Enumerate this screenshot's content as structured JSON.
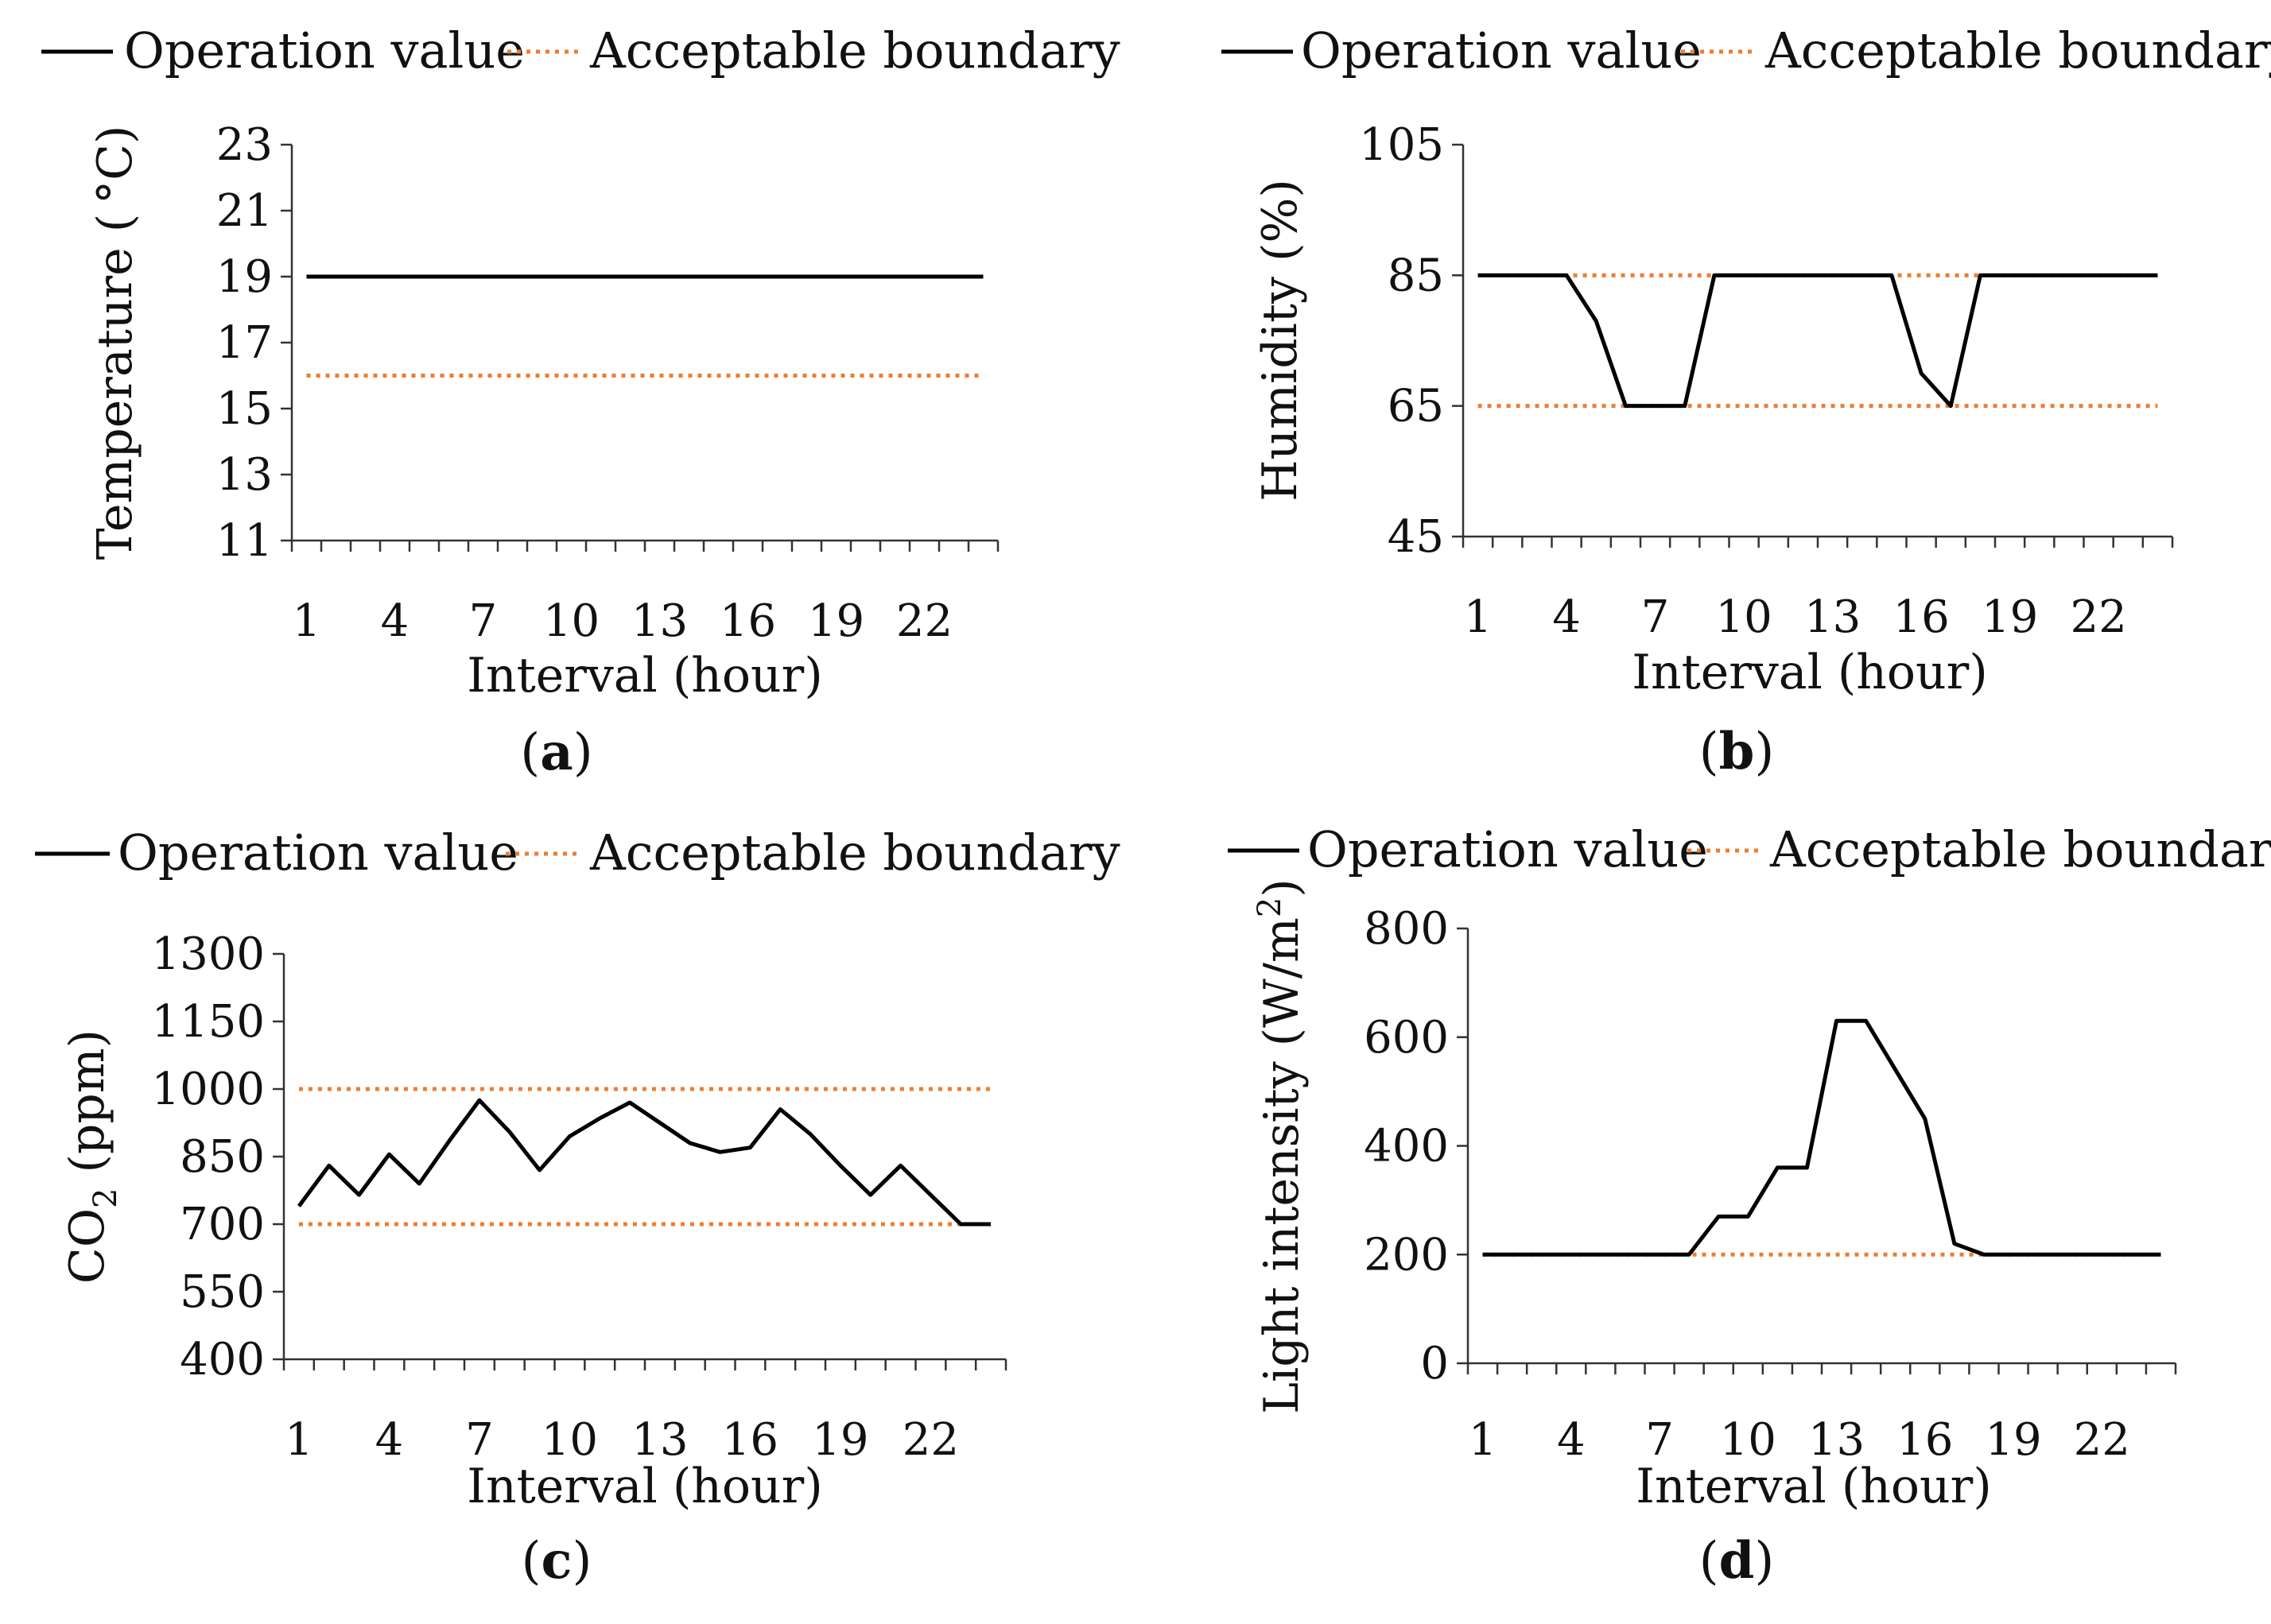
{
  "chart_data": [
    {
      "panel": "a",
      "caption": {
        "open": "(",
        "letter": "a",
        "close": ")"
      },
      "type": "line",
      "legend": {
        "operation": "Operation value",
        "boundary": "Acceptable boundary"
      },
      "ylabel": "Temperature ( °C)",
      "xlabel": "Interval (hour)",
      "ylim": [
        11,
        23
      ],
      "yticks": [
        11,
        13,
        15,
        17,
        19,
        21,
        23
      ],
      "xticks": [
        1,
        4,
        7,
        10,
        13,
        16,
        19,
        22
      ],
      "x": [
        1,
        2,
        3,
        4,
        5,
        6,
        7,
        8,
        9,
        10,
        11,
        12,
        13,
        14,
        15,
        16,
        17,
        18,
        19,
        20,
        21,
        22,
        23,
        24
      ],
      "series": [
        {
          "name": "Operation value",
          "values": [
            19,
            19,
            19,
            19,
            19,
            19,
            19,
            19,
            19,
            19,
            19,
            19,
            19,
            19,
            19,
            19,
            19,
            19,
            19,
            19,
            19,
            19,
            19,
            19
          ]
        }
      ],
      "boundaries": [
        19,
        16
      ],
      "colors": {
        "operation": "#000000",
        "boundary": "#ed7d31"
      }
    },
    {
      "panel": "b",
      "caption": {
        "open": "(",
        "letter": "b",
        "close": ")"
      },
      "type": "line",
      "legend": {
        "operation": "Operation value",
        "boundary": "Acceptable boundary"
      },
      "ylabel": "Humidity (%)",
      "xlabel": "Interval (hour)",
      "ylim": [
        45,
        105
      ],
      "yticks": [
        45,
        65,
        85,
        105
      ],
      "xticks": [
        1,
        4,
        7,
        10,
        13,
        16,
        19,
        22
      ],
      "x": [
        1,
        2,
        3,
        4,
        5,
        6,
        7,
        8,
        9,
        10,
        11,
        12,
        13,
        14,
        15,
        16,
        17,
        18,
        19,
        20,
        21,
        22,
        23,
        24
      ],
      "series": [
        {
          "name": "Operation value",
          "values": [
            85,
            85,
            85,
            85,
            78,
            65,
            65,
            65,
            85,
            85,
            85,
            85,
            85,
            85,
            85,
            70,
            65,
            85,
            85,
            85,
            85,
            85,
            85,
            85
          ]
        }
      ],
      "boundaries": [
        85,
        65
      ],
      "colors": {
        "operation": "#000000",
        "boundary": "#ed7d31"
      }
    },
    {
      "panel": "c",
      "caption": {
        "open": "(",
        "letter": "c",
        "close": ")"
      },
      "type": "line",
      "legend": {
        "operation": "Operation value",
        "boundary": "Acceptable boundary"
      },
      "ylabel": {
        "pre": "CO",
        "sub": "2",
        "post": " (ppm)"
      },
      "xlabel": "Interval (hour)",
      "ylim": [
        400,
        1300
      ],
      "yticks": [
        400,
        550,
        700,
        850,
        1000,
        1150,
        1300
      ],
      "xticks": [
        1,
        4,
        7,
        10,
        13,
        16,
        19,
        22
      ],
      "x": [
        1,
        2,
        3,
        4,
        5,
        6,
        7,
        8,
        9,
        10,
        11,
        12,
        13,
        14,
        15,
        16,
        17,
        18,
        19,
        20,
        21,
        22,
        23,
        24
      ],
      "series": [
        {
          "name": "Operation value",
          "values": [
            740,
            830,
            765,
            855,
            790,
            885,
            975,
            905,
            820,
            895,
            935,
            970,
            925,
            880,
            860,
            870,
            955,
            900,
            830,
            765,
            830,
            765,
            700,
            700
          ]
        }
      ],
      "boundaries": [
        1000,
        700
      ],
      "colors": {
        "operation": "#000000",
        "boundary": "#ed7d31"
      }
    },
    {
      "panel": "d",
      "caption": {
        "open": "(",
        "letter": "d",
        "close": ")"
      },
      "type": "line",
      "legend": {
        "operation": "Operation value",
        "boundary": "Acceptable boundary"
      },
      "ylabel": {
        "pre": "Light intensity (W/m",
        "sup": "2",
        "post": ")"
      },
      "xlabel": "Interval (hour)",
      "ylim": [
        0,
        800
      ],
      "yticks": [
        0,
        200,
        400,
        600,
        800
      ],
      "xticks": [
        1,
        4,
        7,
        10,
        13,
        16,
        19,
        22
      ],
      "x": [
        1,
        2,
        3,
        4,
        5,
        6,
        7,
        8,
        9,
        10,
        11,
        12,
        13,
        14,
        15,
        16,
        17,
        18,
        19,
        20,
        21,
        22,
        23,
        24
      ],
      "series": [
        {
          "name": "Operation value",
          "values": [
            200,
            200,
            200,
            200,
            200,
            200,
            200,
            200,
            270,
            270,
            360,
            360,
            630,
            630,
            540,
            450,
            220,
            200,
            200,
            200,
            200,
            200,
            200,
            200
          ]
        }
      ],
      "boundaries": [
        200
      ],
      "colors": {
        "operation": "#000000",
        "boundary": "#ed7d31"
      }
    }
  ]
}
